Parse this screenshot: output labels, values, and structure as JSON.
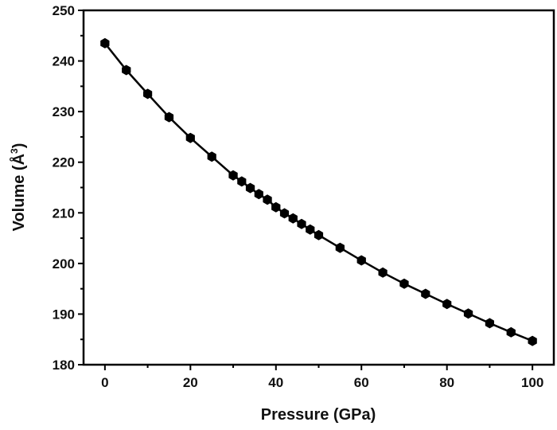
{
  "chart_data": {
    "type": "line",
    "title": "",
    "xlabel": "Pressure (GPa)",
    "ylabel_main": "Volume (Å",
    "ylabel_sup": "3",
    "ylabel_end": ")",
    "xlim": [
      -5,
      105
    ],
    "ylim": [
      180,
      250
    ],
    "xticks": [
      0,
      20,
      40,
      60,
      80,
      100
    ],
    "yticks": [
      180,
      190,
      200,
      210,
      220,
      230,
      240,
      250
    ],
    "grid": false,
    "marker": "hexagon",
    "color": "#000000",
    "series": [
      {
        "x": [
          0,
          5,
          10,
          15,
          20,
          25,
          30,
          32,
          34,
          36,
          38,
          40,
          42,
          44,
          46,
          48,
          50,
          55,
          60,
          65,
          70,
          75,
          80,
          85,
          90,
          95,
          100
        ],
        "y": [
          243.5,
          238.2,
          233.5,
          228.9,
          224.8,
          221.1,
          217.4,
          216.2,
          214.9,
          213.7,
          212.6,
          211.1,
          209.9,
          208.9,
          207.8,
          206.7,
          205.6,
          203.1,
          200.6,
          198.2,
          196.0,
          194.0,
          192.0,
          190.1,
          188.2,
          186.4,
          184.7
        ]
      }
    ]
  }
}
